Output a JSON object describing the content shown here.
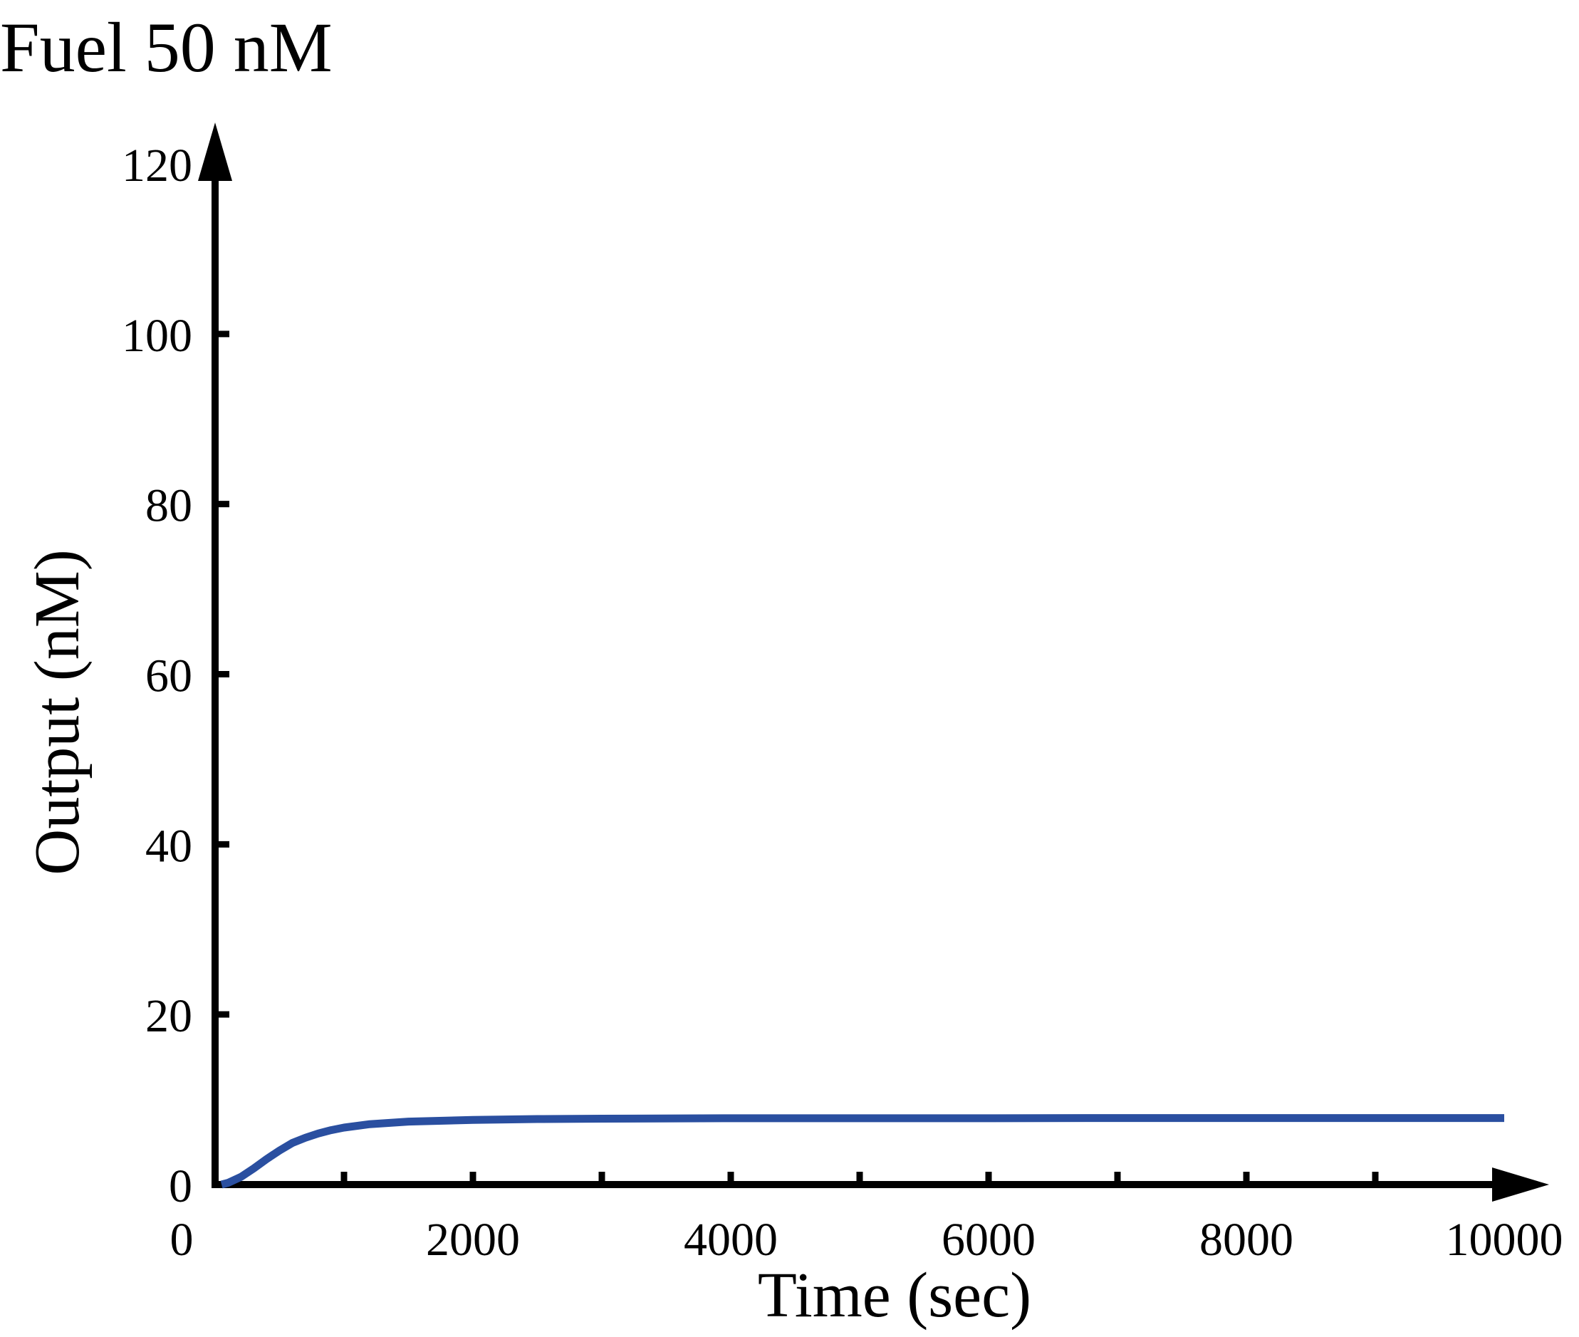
{
  "chart_data": {
    "type": "line",
    "title": "Fuel 50 nM",
    "xlabel": "Time (sec)",
    "ylabel": "Output (nM)",
    "xlim": [
      0,
      10000
    ],
    "ylim": [
      0,
      120
    ],
    "x_ticks": [
      0,
      1000,
      2000,
      3000,
      4000,
      5000,
      6000,
      7000,
      8000,
      9000,
      10000
    ],
    "x_tick_labels": [
      {
        "value": 0,
        "label": "0"
      },
      {
        "value": 2000,
        "label": "2000"
      },
      {
        "value": 4000,
        "label": "4000"
      },
      {
        "value": 6000,
        "label": "6000"
      },
      {
        "value": 8000,
        "label": "8000"
      },
      {
        "value": 10000,
        "label": "10000"
      }
    ],
    "y_ticks": [
      0,
      20,
      40,
      60,
      80,
      100,
      120
    ],
    "y_tick_labels": [
      {
        "value": 0,
        "label": "0"
      },
      {
        "value": 20,
        "label": "20"
      },
      {
        "value": 40,
        "label": "40"
      },
      {
        "value": 60,
        "label": "60"
      },
      {
        "value": 80,
        "label": "80"
      },
      {
        "value": 100,
        "label": "100"
      },
      {
        "value": 120,
        "label": "120"
      }
    ],
    "grid": false,
    "series": [
      {
        "color": "#2a4fa0",
        "x": [
          50,
          100,
          200,
          300,
          400,
          500,
          600,
          700,
          800,
          900,
          1000,
          1200,
          1500,
          2000,
          2500,
          3000,
          4000,
          5000,
          6000,
          7000,
          8000,
          9000,
          10000
        ],
        "y": [
          0,
          0.2,
          0.9,
          1.9,
          3.0,
          4.0,
          4.9,
          5.5,
          6.0,
          6.4,
          6.7,
          7.1,
          7.4,
          7.6,
          7.7,
          7.75,
          7.8,
          7.8,
          7.8,
          7.82,
          7.82,
          7.82,
          7.82
        ]
      }
    ]
  }
}
